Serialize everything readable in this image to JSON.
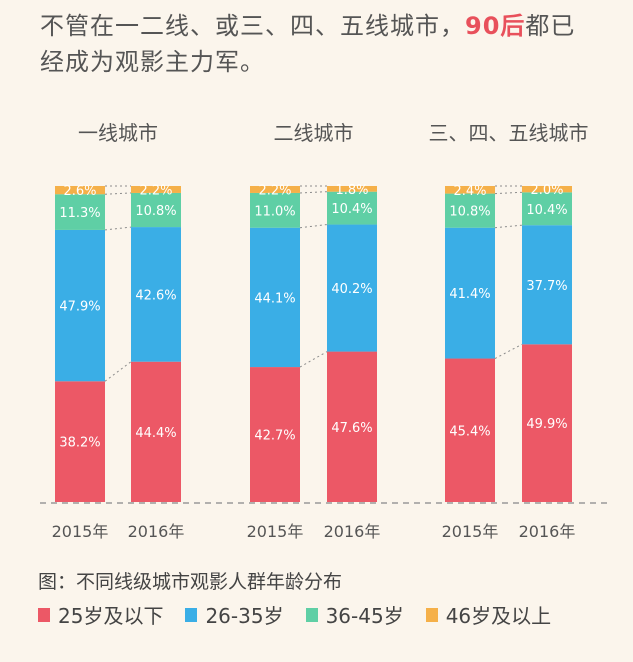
{
  "headline": {
    "part1": "不管在一二线、或三、四、五线城市，",
    "highlight": "90后",
    "part2": "都已经成为观影主力军。"
  },
  "caption": "图：不同线级城市观影人群年龄分布",
  "colors": {
    "under25": "#ec5866",
    "age26_35": "#3aaee6",
    "age36_45": "#5fcfa5",
    "over46": "#f5b049",
    "highlight": "#e8505b"
  },
  "chart_data": {
    "type": "bar",
    "stacked": true,
    "percent": true,
    "ylim": [
      0,
      100
    ],
    "legend_position": "bottom",
    "legend": [
      "25岁及以下",
      "26-35岁",
      "36-45岁",
      "46岁及以上"
    ],
    "groups": [
      {
        "title": "一线城市",
        "bars": [
          {
            "year": "2015年",
            "values": [
              38.2,
              47.9,
              11.3,
              2.6
            ],
            "labels": [
              "38.2%",
              "47.9%",
              "11.3%",
              "2.6%"
            ]
          },
          {
            "year": "2016年",
            "values": [
              44.4,
              42.6,
              10.8,
              2.2
            ],
            "labels": [
              "44.4%",
              "42.6%",
              "10.8%",
              "2.2%"
            ]
          }
        ]
      },
      {
        "title": "二线城市",
        "bars": [
          {
            "year": "2015年",
            "values": [
              42.7,
              44.1,
              11.0,
              2.2
            ],
            "labels": [
              "42.7%",
              "44.1%",
              "11.0%",
              "2.2%"
            ]
          },
          {
            "year": "2016年",
            "values": [
              47.6,
              40.2,
              10.4,
              1.8
            ],
            "labels": [
              "47.6%",
              "40.2%",
              "10.4%",
              "1.8%"
            ]
          }
        ]
      },
      {
        "title": "三、四、五线城市",
        "bars": [
          {
            "year": "2015年",
            "values": [
              45.4,
              41.4,
              10.8,
              2.4
            ],
            "labels": [
              "45.4%",
              "41.4%",
              "10.8%",
              "2.4%"
            ]
          },
          {
            "year": "2016年",
            "values": [
              49.9,
              37.7,
              10.4,
              2.0
            ],
            "labels": [
              "49.9%",
              "37.7%",
              "10.4%",
              "2.0%"
            ]
          }
        ]
      }
    ]
  }
}
